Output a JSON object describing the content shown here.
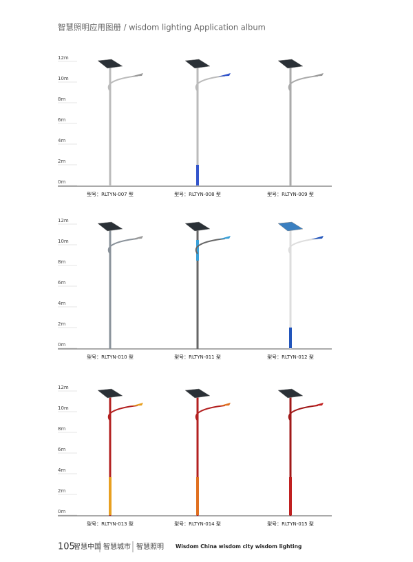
{
  "header": {
    "title": "智慧照明应用图册 / wisdom lighting Application album"
  },
  "panels": [
    {
      "scale": [
        "12m",
        "10m",
        "8m",
        "6m",
        "4m",
        "2m",
        "0m"
      ],
      "models": [
        "型号：RLTYN-007 型",
        "型号：RLTYN-008 型",
        "型号：RLTYN-009 型"
      ]
    },
    {
      "scale": [
        "12m",
        "10m",
        "8m",
        "6m",
        "4m",
        "2m",
        "0m"
      ],
      "models": [
        "型号：RLTYN-010 型",
        "型号：RLTYN-011 型",
        "型号：RLTYN-012 型"
      ]
    },
    {
      "scale": [
        "12m",
        "10m",
        "8m",
        "6m",
        "4m",
        "2m",
        "0m"
      ],
      "models": [
        "型号：RLTYN-013 型",
        "型号：RLTYN-014 型",
        "型号：RLTYN-015 型"
      ]
    }
  ],
  "footer": {
    "page": "105",
    "sections": [
      "智慧中国",
      "智慧城市",
      "智慧照明"
    ],
    "slogan": "Wisdom China  wisdom city  wisdom lighting"
  }
}
